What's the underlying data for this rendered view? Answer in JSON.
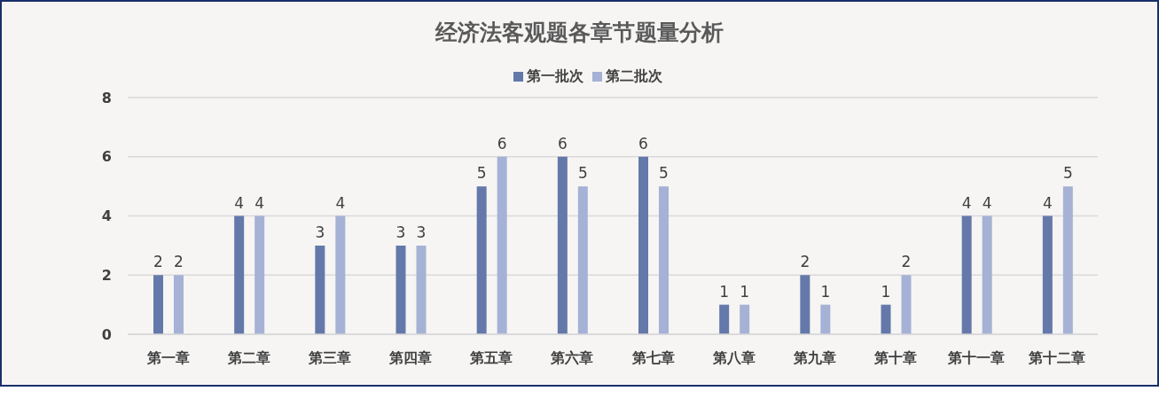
{
  "chart_data": {
    "type": "bar",
    "title": "经济法客观题各章节题量分析",
    "categories": [
      "第一章",
      "第二章",
      "第三章",
      "第四章",
      "第五章",
      "第六章",
      "第七章",
      "第八章",
      "第九章",
      "第十章",
      "第十一章",
      "第十二章"
    ],
    "series": [
      {
        "name": "第一批次",
        "color": "#6479aa",
        "values": [
          2,
          4,
          3,
          3,
          5,
          6,
          6,
          1,
          2,
          1,
          4,
          4
        ]
      },
      {
        "name": "第二批次",
        "color": "#a5b2d5",
        "values": [
          2,
          4,
          4,
          3,
          6,
          5,
          5,
          1,
          1,
          2,
          4,
          5
        ]
      }
    ],
    "ylim": [
      0,
      8
    ],
    "yticks": [
      0,
      2,
      4,
      6,
      8
    ],
    "grid": "y",
    "legend": "top",
    "data_labels": true
  }
}
